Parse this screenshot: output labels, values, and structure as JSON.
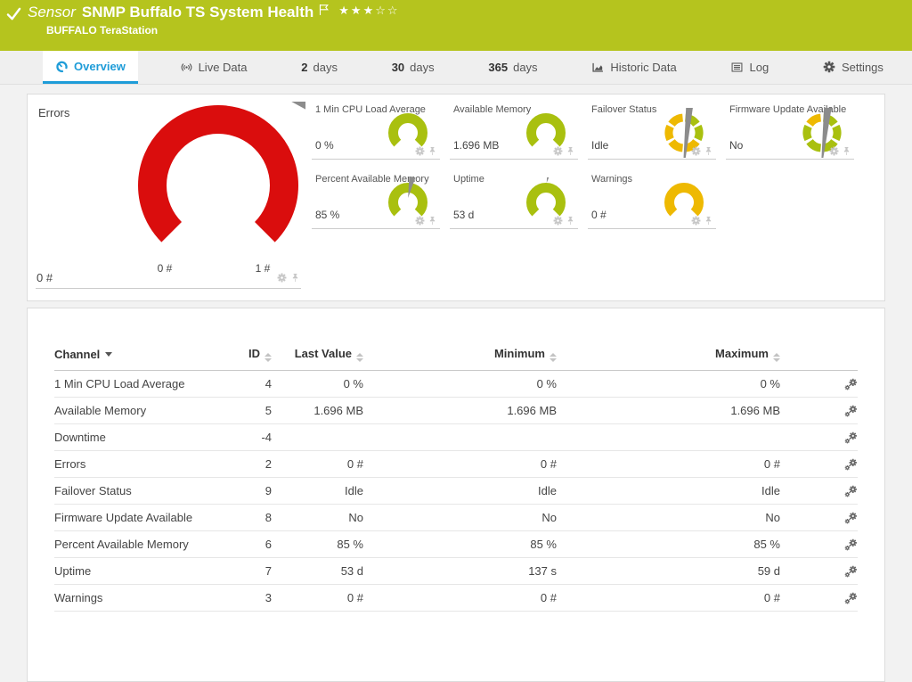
{
  "colors": {
    "brand_green": "#b5c41e",
    "gauge_green": "#a9c00f",
    "gauge_yellow": "#eeb902",
    "gauge_red": "#da0d0d",
    "accent_blue": "#1e9cd8",
    "needle_gray": "#8c8c8c"
  },
  "header": {
    "kicker": "Sensor",
    "title": "SNMP Buffalo TS System Health",
    "subtitle": "BUFFALO TeraStation",
    "stars": "★★★☆☆"
  },
  "tabs": [
    {
      "label": "Overview",
      "icon": "gauge-blue",
      "active": true
    },
    {
      "label": "Live Data",
      "icon": "live"
    },
    {
      "num": "2",
      "label": "days"
    },
    {
      "num": "30",
      "label": "days"
    },
    {
      "num": "365",
      "label": "days"
    },
    {
      "label": "Historic Data",
      "icon": "chart"
    },
    {
      "label": "Log",
      "icon": "log"
    },
    {
      "label": "Settings",
      "icon": "gear-dark"
    }
  ],
  "gauges": {
    "errors": {
      "title": "Errors",
      "value": "0 #",
      "scale_min": "0 #",
      "scale_max": "1 #",
      "color": "gauge_red",
      "needle_deg": 225
    },
    "cells": [
      {
        "title": "1 Min CPU Load Average",
        "value": "0 %",
        "type": "arc",
        "color": "gauge_green",
        "needle_deg": 225
      },
      {
        "title": "Available Memory",
        "value": "1.696 MB",
        "type": "arc",
        "color": "gauge_green",
        "needle_deg": 132
      },
      {
        "title": "Failover Status",
        "value": "Idle",
        "type": "ring",
        "needle_deg": 38,
        "segments": [
          "gauge_green",
          "gauge_green",
          "gauge_yellow",
          "gauge_yellow",
          "gauge_yellow",
          "gauge_yellow"
        ]
      },
      {
        "title": "Firmware Update Available",
        "value": "No",
        "type": "ring",
        "needle_deg": 45,
        "segments": [
          "gauge_green",
          "gauge_green",
          "gauge_green",
          "gauge_green",
          "gauge_green",
          "gauge_yellow"
        ]
      },
      {
        "title": "Percent Available Memory",
        "value": "85 %",
        "type": "arc",
        "color": "gauge_green",
        "needle_deg": 95
      },
      {
        "title": "Uptime",
        "value": "53 d",
        "type": "arc",
        "color": "gauge_green",
        "needle_deg": 112
      },
      {
        "title": "Warnings",
        "value": "0 #",
        "type": "arc",
        "color": "gauge_yellow",
        "needle_deg": 225
      }
    ]
  },
  "table": {
    "columns": [
      {
        "label": "Channel",
        "sort": "desc"
      },
      {
        "label": "ID",
        "sort": "both"
      },
      {
        "label": "Last Value",
        "sort": "both"
      },
      {
        "label": "Minimum",
        "sort": "both"
      },
      {
        "label": "Maximum",
        "sort": "both"
      }
    ],
    "rows": [
      [
        "1 Min CPU Load Average",
        "4",
        "0 %",
        "0 %",
        "0 %"
      ],
      [
        "Available Memory",
        "5",
        "1.696 MB",
        "1.696 MB",
        "1.696 MB"
      ],
      [
        "Downtime",
        "-4",
        "",
        "",
        ""
      ],
      [
        "Errors",
        "2",
        "0 #",
        "0 #",
        "0 #"
      ],
      [
        "Failover Status",
        "9",
        "Idle",
        "Idle",
        "Idle"
      ],
      [
        "Firmware Update Available",
        "8",
        "No",
        "No",
        "No"
      ],
      [
        "Percent Available Memory",
        "6",
        "85 %",
        "85 %",
        "85 %"
      ],
      [
        "Uptime",
        "7",
        "53 d",
        "137 s",
        "59 d"
      ],
      [
        "Warnings",
        "3",
        "0 #",
        "0 #",
        "0 #"
      ]
    ]
  }
}
